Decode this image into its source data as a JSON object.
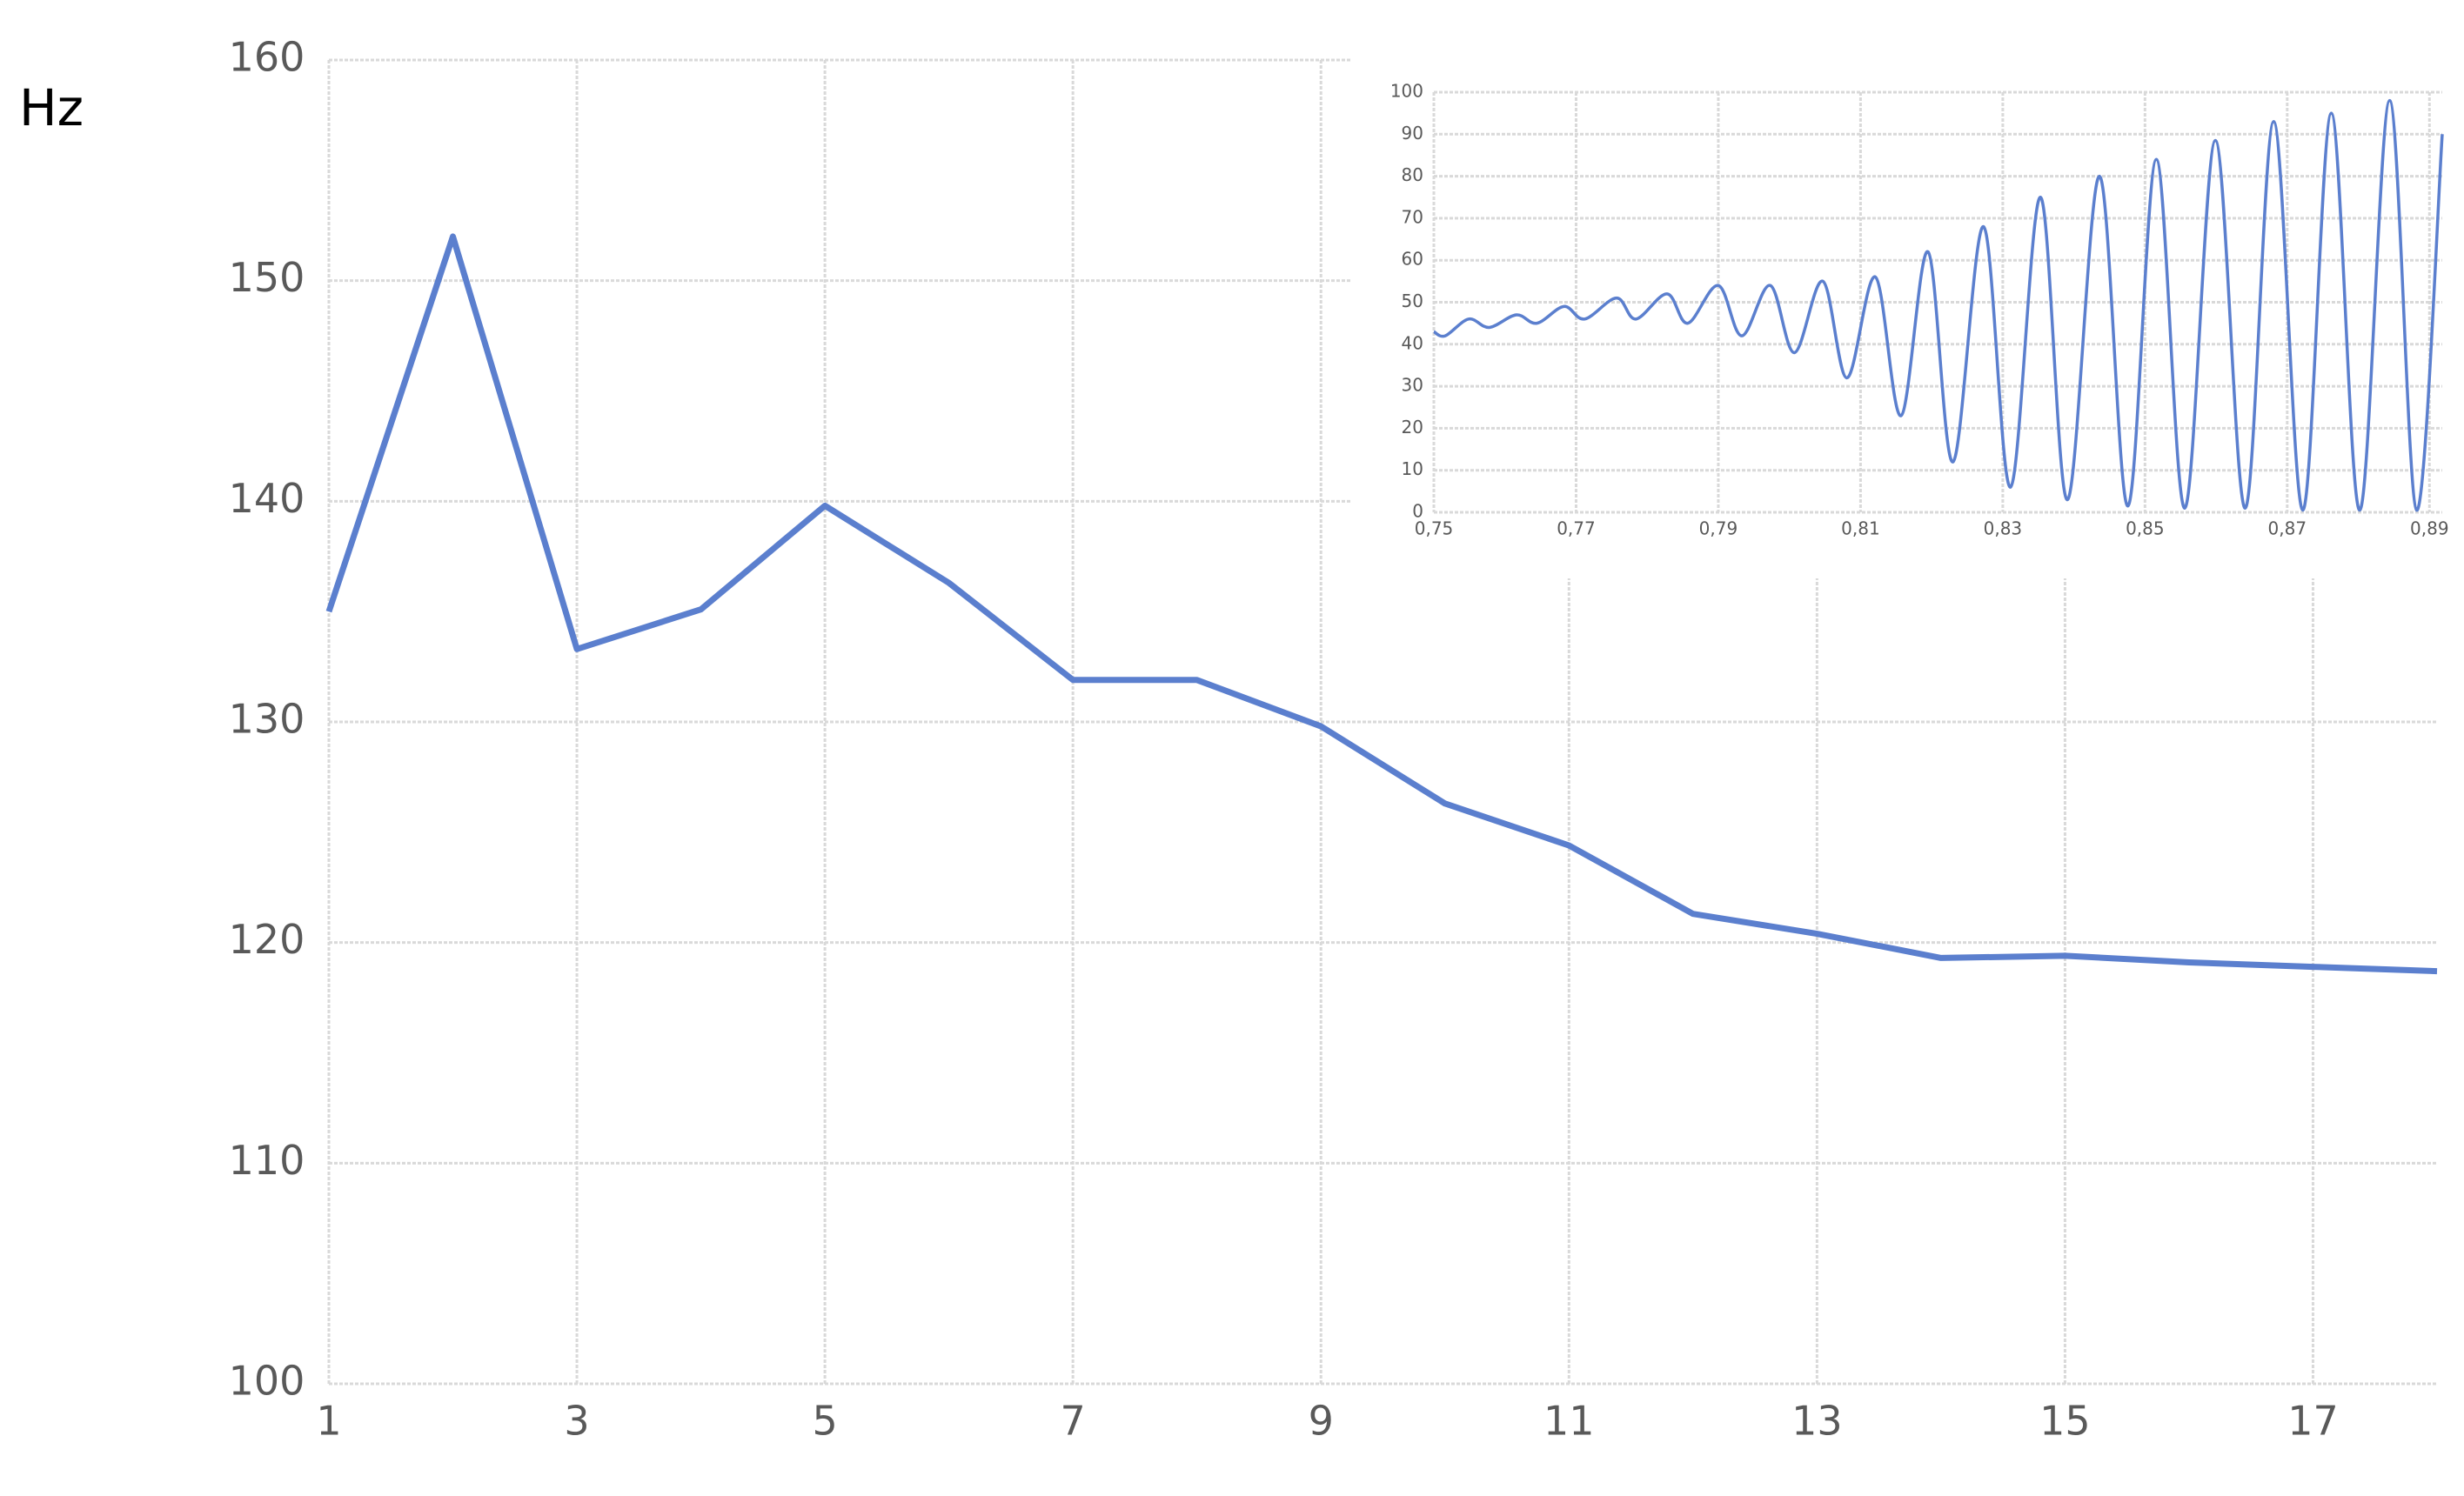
{
  "chart_data": [
    {
      "type": "line",
      "y_label": "Hz",
      "color": "#5b7fce",
      "grid": true,
      "x": [
        1,
        2,
        3,
        4,
        5,
        6,
        7,
        8,
        9,
        10,
        11,
        12,
        13,
        14,
        15,
        16,
        17,
        18
      ],
      "values": [
        135,
        152,
        133.3,
        135.1,
        139.8,
        136.3,
        131.9,
        131.9,
        129.8,
        126.3,
        124.4,
        121.3,
        120.4,
        119.3,
        119.4,
        119.1,
        118.9,
        118.7
      ],
      "xlim": [
        1,
        18
      ],
      "xticks": [
        1,
        3,
        5,
        7,
        9,
        11,
        13,
        15,
        17
      ],
      "ylim": [
        100,
        160
      ],
      "yticks": [
        100,
        110,
        120,
        130,
        140,
        150,
        160
      ]
    },
    {
      "type": "line",
      "color": "#5b7fce",
      "grid": true,
      "smooth": true,
      "x": [
        0.75,
        0.7516,
        0.7549,
        0.7578,
        0.7616,
        0.7645,
        0.7683,
        0.7712,
        0.7757,
        0.7784,
        0.7828,
        0.7857,
        0.79,
        0.7933,
        0.7973,
        0.8007,
        0.8047,
        0.8081,
        0.8121,
        0.8157,
        0.8195,
        0.823,
        0.8273,
        0.8311,
        0.8353,
        0.8391,
        0.8436,
        0.8476,
        0.8516,
        0.8556,
        0.8599,
        0.8641,
        0.8681,
        0.8722,
        0.8762,
        0.8802,
        0.8844,
        0.8882,
        0.8918
      ],
      "values": [
        43,
        42,
        46,
        44,
        47,
        45,
        49,
        46,
        51,
        46,
        52,
        45,
        54,
        42,
        54,
        38,
        55,
        32,
        56,
        23,
        62,
        12,
        68,
        6,
        75,
        3,
        80,
        1.5,
        84,
        1,
        88.5,
        1,
        93,
        0.5,
        95,
        0.5,
        98,
        0.5,
        90
      ],
      "xlim": [
        0.75,
        0.8918
      ],
      "xticks": [
        {
          "value": 0.75,
          "label": "0,75"
        },
        {
          "value": 0.77,
          "label": "0,77"
        },
        {
          "value": 0.79,
          "label": "0,79"
        },
        {
          "value": 0.81,
          "label": "0,81"
        },
        {
          "value": 0.83,
          "label": "0,83"
        },
        {
          "value": 0.85,
          "label": "0,85"
        },
        {
          "value": 0.87,
          "label": "0,87"
        },
        {
          "value": 0.89,
          "label": "0,89"
        }
      ],
      "ylim": [
        0,
        100
      ],
      "yticks": [
        0,
        10,
        20,
        30,
        40,
        50,
        60,
        70,
        80,
        90,
        100
      ]
    }
  ]
}
